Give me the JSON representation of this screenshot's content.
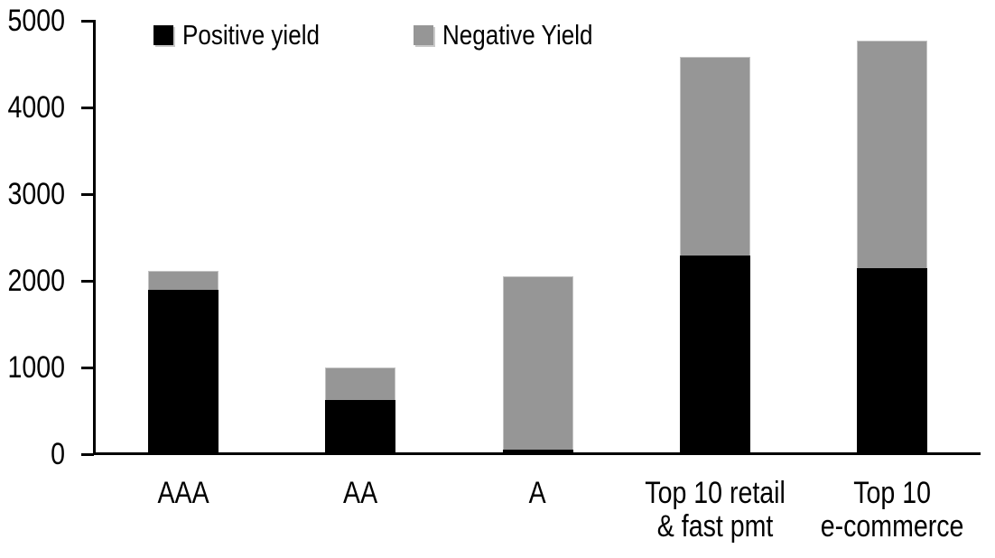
{
  "chart_data": {
    "type": "bar",
    "stacked": true,
    "title": "",
    "xlabel": "",
    "ylabel": "",
    "categories": [
      "AAA",
      "AA",
      "A",
      "Top 10 retail\n& fast pmt",
      "Top 10\ne-commerce"
    ],
    "series": [
      {
        "name": "Positive yield",
        "color": "#000000",
        "values": [
          1900,
          630,
          50,
          2290,
          2150
        ]
      },
      {
        "name": "Negative Yield",
        "color": "#969696",
        "values": [
          220,
          370,
          2000,
          2290,
          2620
        ]
      }
    ],
    "totals": [
      2120,
      1000,
      2050,
      4580,
      4770
    ],
    "ylim": [
      0,
      5000
    ],
    "yticks": [
      0,
      1000,
      2000,
      3000,
      4000,
      5000
    ],
    "grid": false,
    "legend_position": "top"
  },
  "colors": {
    "axis": "#000000",
    "background": "#ffffff",
    "positive": "#000000",
    "negative": "#969696"
  }
}
